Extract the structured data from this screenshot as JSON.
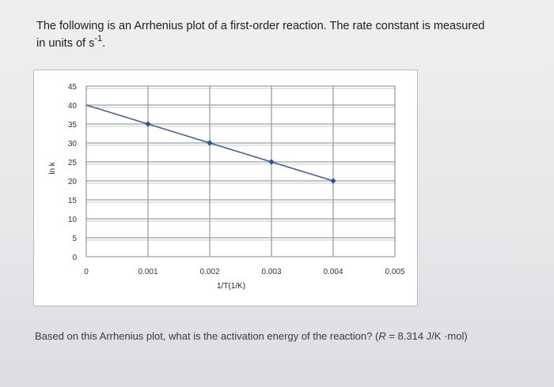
{
  "question": {
    "line1": "The following is an Arrhenius plot of a first-order reaction. The rate constant is measured",
    "line2_prefix": "in units of s",
    "line2_sup": "-1",
    "line2_suffix": "."
  },
  "footer": {
    "text_before_R": "Based on this Arrhenius plot, what is the activation energy of the reaction? (",
    "R_symbol": "R",
    "text_after_R": " = 8.314 J/K ·mol)"
  },
  "chart_data": {
    "type": "line",
    "xlabel": "1/T(1/K)",
    "ylabel": "ln k",
    "x_ticks": [
      "0",
      "0.001",
      "0.002",
      "0.003",
      "0.004",
      "0.005"
    ],
    "y_ticks": [
      "0",
      "5",
      "10",
      "15",
      "20",
      "25",
      "30",
      "35",
      "40",
      "45"
    ],
    "xlim": [
      0,
      0.005
    ],
    "ylim": [
      0,
      45
    ],
    "grid": true,
    "colors": {
      "line": "#4a5f8a",
      "marker": "#2f4fa0",
      "grid": "#9aa0a8"
    },
    "series": [
      {
        "x": [
          0,
          0.001,
          0.002,
          0.003,
          0.004
        ],
        "y": [
          40,
          35,
          30,
          25,
          20
        ],
        "markers": [
          false,
          true,
          true,
          true,
          true
        ]
      }
    ]
  }
}
